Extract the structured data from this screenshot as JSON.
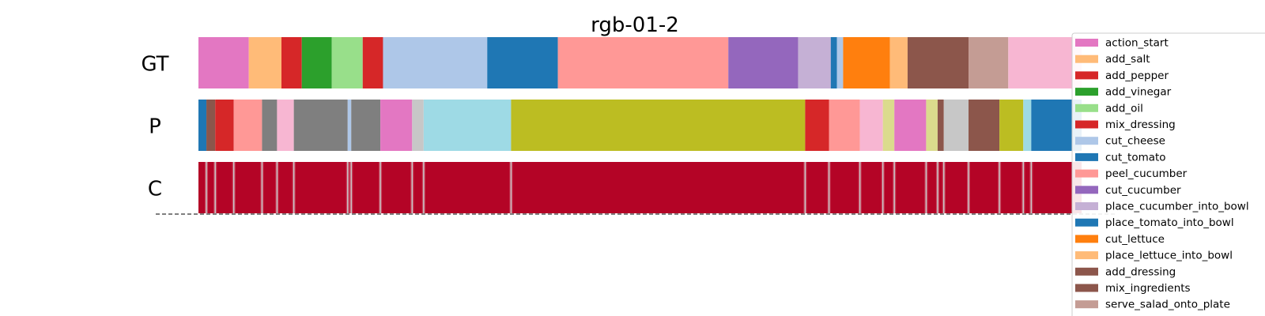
{
  "chart_data": {
    "type": "segmentation-timeline",
    "title": "rgb-01-2",
    "x_range": [
      0,
      1000
    ],
    "rows": [
      {
        "label": "GT",
        "segments": [
          {
            "start": 0,
            "end": 57,
            "action": "action_start"
          },
          {
            "start": 57,
            "end": 94,
            "action": "add_salt"
          },
          {
            "start": 94,
            "end": 117,
            "action": "add_pepper"
          },
          {
            "start": 117,
            "end": 151,
            "action": "add_vinegar"
          },
          {
            "start": 151,
            "end": 186,
            "action": "add_oil"
          },
          {
            "start": 186,
            "end": 209,
            "action": "mix_dressing"
          },
          {
            "start": 209,
            "end": 327,
            "action": "cut_cheese"
          },
          {
            "start": 327,
            "end": 407,
            "action": "cut_tomato"
          },
          {
            "start": 407,
            "end": 600,
            "action": "peel_cucumber"
          },
          {
            "start": 600,
            "end": 679,
            "action": "cut_cucumber"
          },
          {
            "start": 679,
            "end": 716,
            "action": "place_cucumber_into_bowl"
          },
          {
            "start": 716,
            "end": 723,
            "action": "place_tomato_into_bowl"
          },
          {
            "start": 723,
            "end": 730,
            "action": "cut_cheese"
          },
          {
            "start": 730,
            "end": 783,
            "action": "cut_lettuce"
          },
          {
            "start": 783,
            "end": 803,
            "action": "place_lettuce_into_bowl"
          },
          {
            "start": 803,
            "end": 872,
            "action": "add_dressing"
          },
          {
            "start": 872,
            "end": 917,
            "action": "serve_salad_onto_plate"
          },
          {
            "start": 917,
            "end": 1000,
            "action": "action_end"
          }
        ]
      },
      {
        "label": "P",
        "segments": [
          {
            "start": 0,
            "end": 9,
            "action": "place_tomato_into_bowl"
          },
          {
            "start": 9,
            "end": 19,
            "action": "mix_ingredients"
          },
          {
            "start": 19,
            "end": 40,
            "action": "add_pepper"
          },
          {
            "start": 40,
            "end": 72,
            "action": "peel_cucumber"
          },
          {
            "start": 72,
            "end": 89,
            "action": "unlabeled_gray"
          },
          {
            "start": 89,
            "end": 108,
            "action": "action_end"
          },
          {
            "start": 108,
            "end": 169,
            "action": "unlabeled_gray"
          },
          {
            "start": 169,
            "end": 173,
            "action": "cut_cheese"
          },
          {
            "start": 173,
            "end": 206,
            "action": "unlabeled_gray"
          },
          {
            "start": 206,
            "end": 242,
            "action": "action_start"
          },
          {
            "start": 242,
            "end": 255,
            "action": "unlabeled_lightgray"
          },
          {
            "start": 255,
            "end": 354,
            "action": "unlabeled_cyan"
          },
          {
            "start": 354,
            "end": 687,
            "action": "unlabeled_olive"
          },
          {
            "start": 687,
            "end": 714,
            "action": "mix_dressing"
          },
          {
            "start": 714,
            "end": 749,
            "action": "peel_cucumber"
          },
          {
            "start": 749,
            "end": 775,
            "action": "action_end"
          },
          {
            "start": 775,
            "end": 788,
            "action": "unlabeled_lightolive"
          },
          {
            "start": 788,
            "end": 824,
            "action": "action_start"
          },
          {
            "start": 824,
            "end": 837,
            "action": "unlabeled_lightolive"
          },
          {
            "start": 837,
            "end": 844,
            "action": "mix_ingredients"
          },
          {
            "start": 844,
            "end": 872,
            "action": "unlabeled_lightgray"
          },
          {
            "start": 872,
            "end": 907,
            "action": "add_dressing"
          },
          {
            "start": 907,
            "end": 934,
            "action": "unlabeled_olive"
          },
          {
            "start": 934,
            "end": 943,
            "action": "unlabeled_cyan"
          },
          {
            "start": 943,
            "end": 1000,
            "action": "place_tomato_into_bowl"
          }
        ]
      },
      {
        "label": "C",
        "fill": "#b40426",
        "boundary_color": "#c8c8c8",
        "boundaries": [
          9,
          19,
          40,
          72,
          89,
          108,
          169,
          173,
          206,
          242,
          255,
          354,
          687,
          714,
          749,
          775,
          788,
          824,
          837,
          844,
          872,
          907,
          934,
          943
        ]
      }
    ],
    "legend": {
      "placement": "right",
      "entries": [
        {
          "name": "action_start",
          "color": "#e377c2"
        },
        {
          "name": "add_salt",
          "color": "#ffbb78"
        },
        {
          "name": "add_pepper",
          "color": "#d62728"
        },
        {
          "name": "add_vinegar",
          "color": "#2ca02c"
        },
        {
          "name": "add_oil",
          "color": "#98df8a"
        },
        {
          "name": "mix_dressing",
          "color": "#d62728"
        },
        {
          "name": "cut_cheese",
          "color": "#aec7e8"
        },
        {
          "name": "cut_tomato",
          "color": "#1f77b4"
        },
        {
          "name": "peel_cucumber",
          "color": "#ff9896"
        },
        {
          "name": "cut_cucumber",
          "color": "#9467bd"
        },
        {
          "name": "place_cucumber_into_bowl",
          "color": "#c5b0d5"
        },
        {
          "name": "place_tomato_into_bowl",
          "color": "#1f77b4"
        },
        {
          "name": "cut_lettuce",
          "color": "#ff7f0e"
        },
        {
          "name": "place_lettuce_into_bowl",
          "color": "#ffbb78"
        },
        {
          "name": "add_dressing",
          "color": "#8c564b"
        },
        {
          "name": "mix_ingredients",
          "color": "#8c564b"
        },
        {
          "name": "serve_salad_onto_plate",
          "color": "#c49c94"
        }
      ]
    },
    "extra_colors": {
      "action_end": "#f7b6d2",
      "unlabeled_gray": "#7f7f7f",
      "unlabeled_lightgray": "#c7c7c7",
      "unlabeled_cyan": "#9edae5",
      "unlabeled_olive": "#bcbd22",
      "unlabeled_lightolive": "#dbdb8d",
      "unlabeled_teal": "#17becf"
    },
    "baseline": {
      "style": "dashed",
      "color": "#333333"
    }
  }
}
